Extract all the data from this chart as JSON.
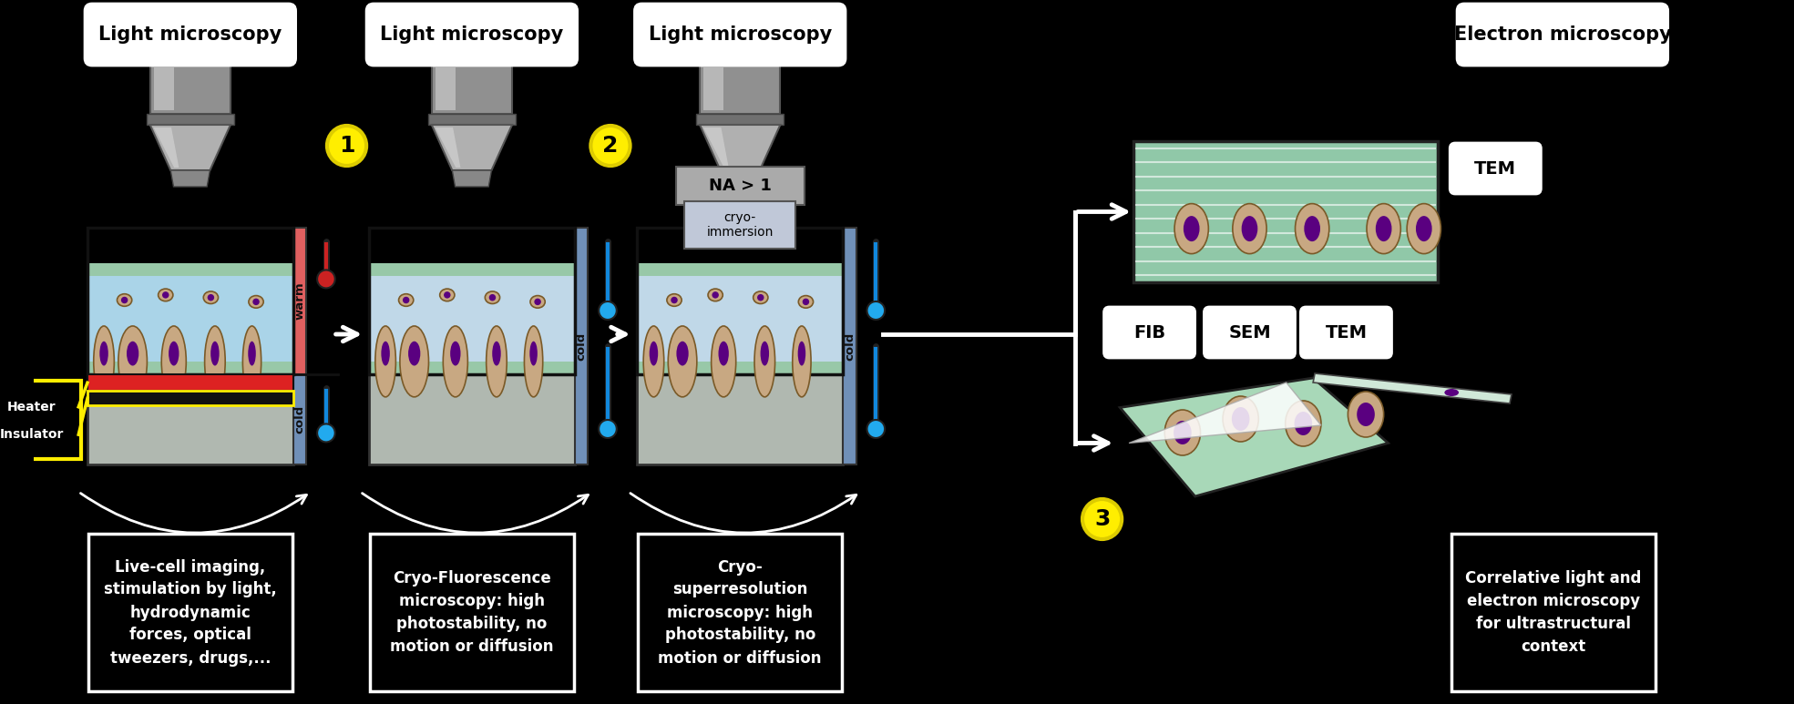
{
  "bg_color": "#000000",
  "title_texts": [
    "Light microscopy",
    "Light microscopy",
    "Light microscopy",
    "Electron microscopy"
  ],
  "bottom_texts": [
    "Live-cell imaging,\nstimulation by light,\nhydrodynamic\nforces, optical\ntweezers, drugs,...",
    "Cryo-Fluorescence\nmicroscopy: high\nphotostability, no\nmotion or diffusion",
    "Cryo-\nsuperresolution\nmicroscopy: high\nphotostability, no\nmotion or diffusion",
    "Correlative light and\nelectron microscopy\nfor ultrastructural\ncontext"
  ],
  "cell_color": "#c8a882",
  "nucleus_color": "#5a0080",
  "water_color_warm": "#aad4e8",
  "water_color_cold": "#c0d8e8",
  "glass_top_color": "#98c8a8",
  "glass_bot_color": "#98c8a8",
  "warm_bar_color": "#e06060",
  "cold_bar_color": "#7090b8",
  "substrate_color": "#b0b8b0",
  "heater_color": "#dd2222",
  "insulator_color": "#111111",
  "na_text": "NA > 1",
  "cryo_immersion_text": "cryo-\nimmersion",
  "warm_label": "warm",
  "cold_label": "cold",
  "heater_label": "Heater",
  "insulator_label": "Insulator",
  "tem_stripe_color": "#90c8a8",
  "fib_color": "#a8d8b8"
}
